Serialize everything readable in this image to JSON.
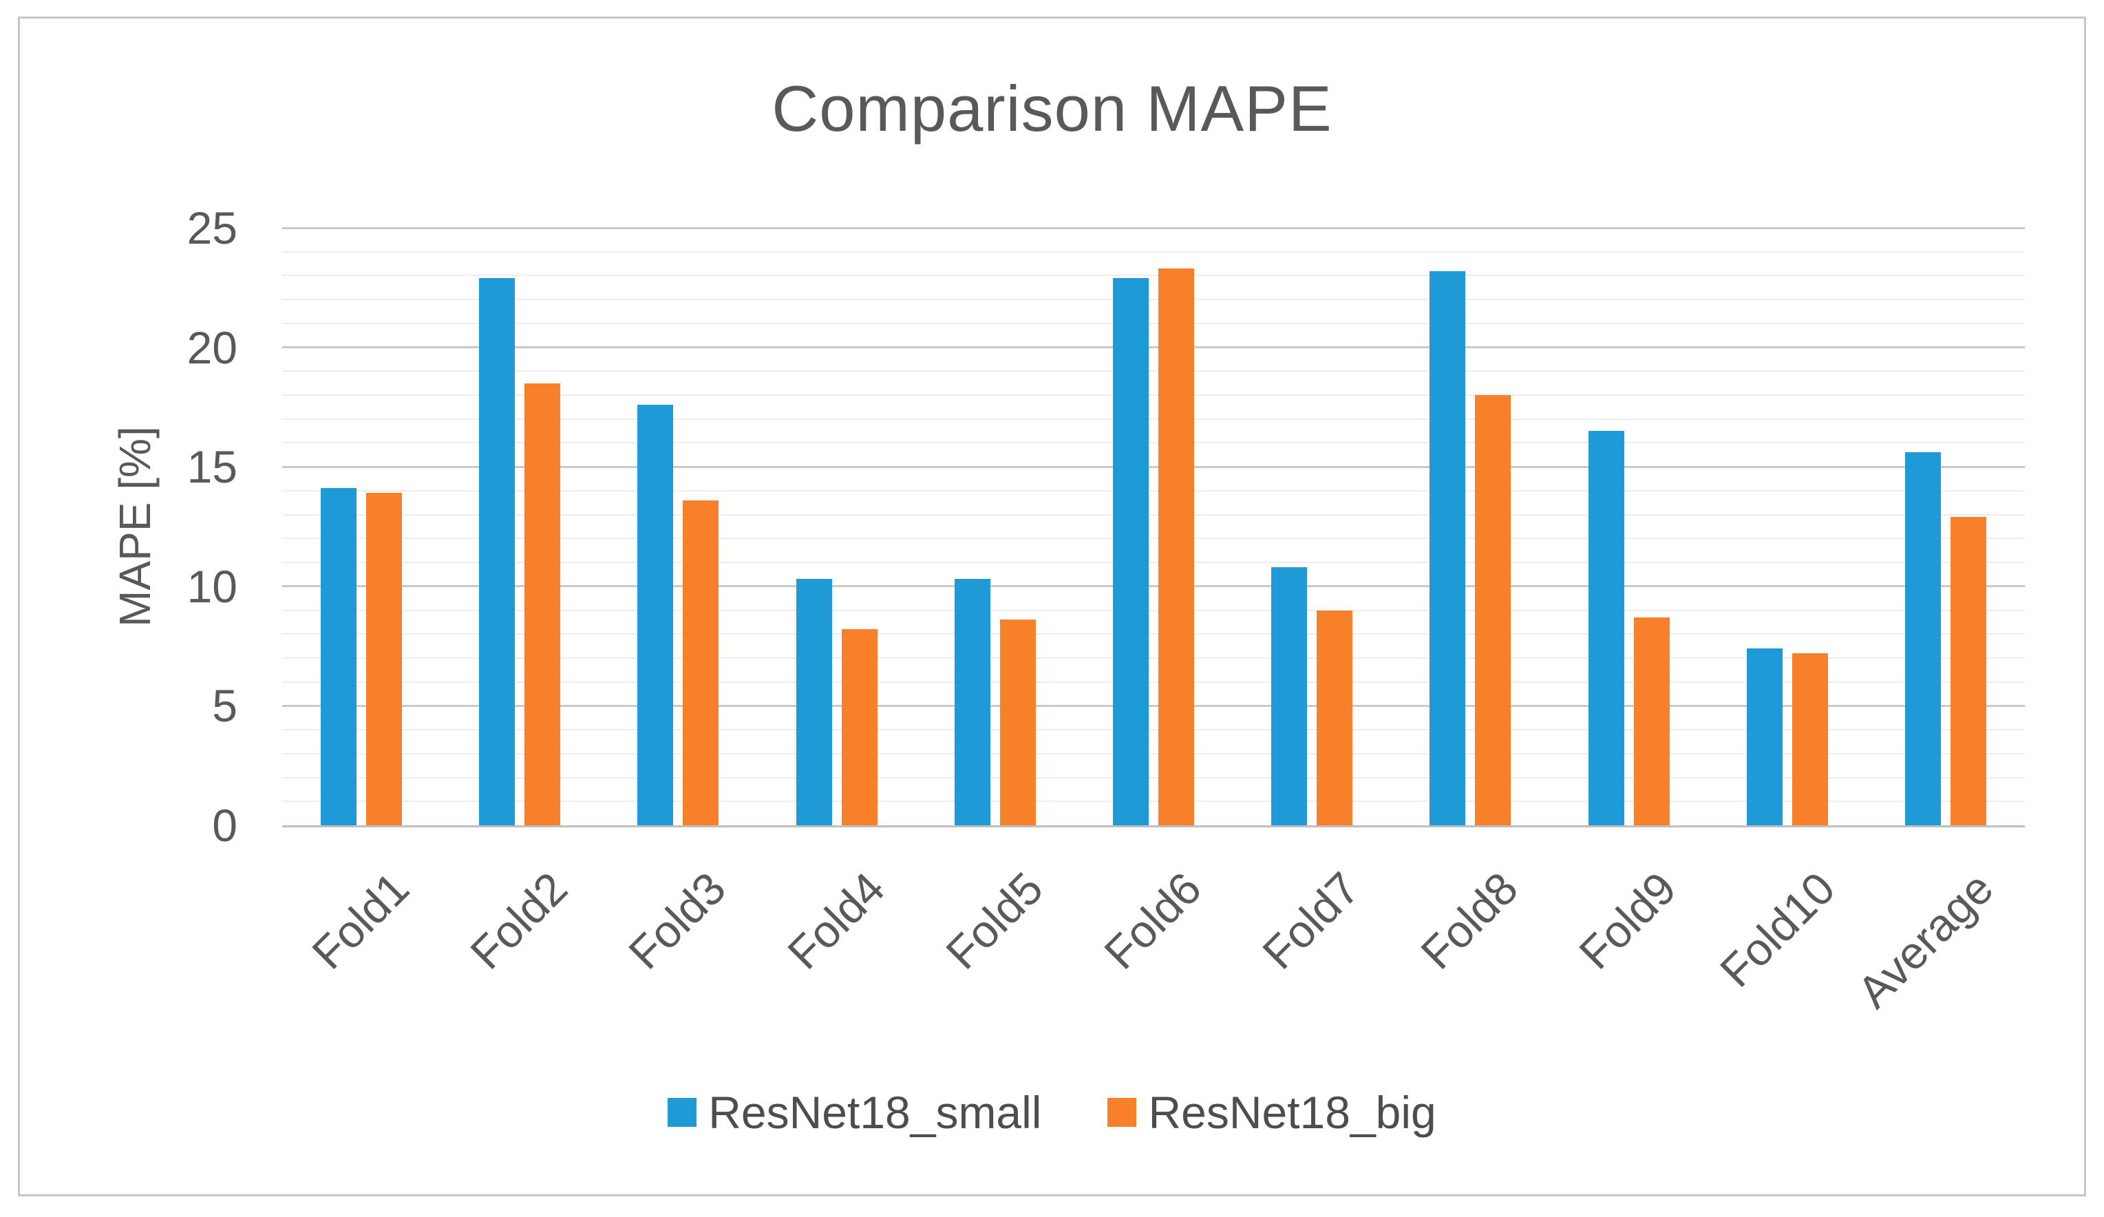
{
  "chart_data": {
    "type": "bar",
    "title": "Comparison MAPE",
    "xlabel": "",
    "ylabel": "MAPE [%]",
    "categories": [
      "Fold1",
      "Fold2",
      "Fold3",
      "Fold4",
      "Fold5",
      "Fold6",
      "Fold7",
      "Fold8",
      "Fold9",
      "Fold10",
      "Average"
    ],
    "series": [
      {
        "name": "ResNet18_small",
        "color": "#1e9ad6",
        "values": [
          14.1,
          22.9,
          17.6,
          10.3,
          10.3,
          22.9,
          10.8,
          23.2,
          16.5,
          7.4,
          15.6
        ]
      },
      {
        "name": "ResNet18_big",
        "color": "#f9802a",
        "values": [
          13.9,
          18.5,
          13.6,
          8.2,
          8.6,
          23.3,
          9.0,
          18.0,
          8.7,
          7.2,
          12.9
        ]
      }
    ],
    "ylim": [
      0,
      25
    ],
    "yticks": [
      0,
      5,
      10,
      15,
      20,
      25
    ],
    "minor_unit": 1,
    "grid": "major and minor horizontal gridlines",
    "legend_position": "bottom"
  },
  "colors": {
    "background": "#ffffff",
    "frame_border": "#c6c6c6",
    "title_text": "#595959",
    "axis_text": "#595959",
    "legend_text": "#4d4d4d",
    "major_grid": "#c9c9c9",
    "minor_grid": "#ededed",
    "axis_line": "#bfbfbf"
  }
}
